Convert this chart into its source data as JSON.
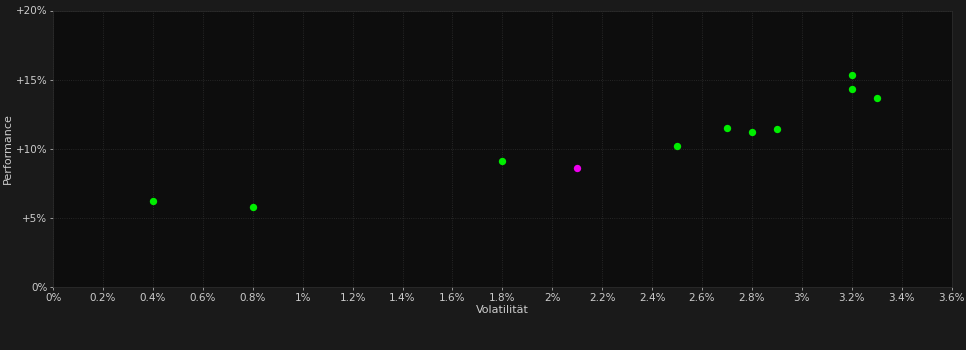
{
  "background_color": "#1a1a1a",
  "plot_bg_color": "#0d0d0d",
  "grid_color": "#2e2e2e",
  "xlabel": "Volatilität",
  "ylabel": "Performance",
  "xlim": [
    0,
    0.036
  ],
  "ylim": [
    0,
    0.2
  ],
  "xticks": [
    0.0,
    0.002,
    0.004,
    0.006,
    0.008,
    0.01,
    0.012,
    0.014,
    0.016,
    0.018,
    0.02,
    0.022,
    0.024,
    0.026,
    0.028,
    0.03,
    0.032,
    0.034,
    0.036
  ],
  "yticks": [
    0.0,
    0.05,
    0.1,
    0.15,
    0.2
  ],
  "ytick_labels": [
    "0%",
    "+5%",
    "+10%",
    "+15%",
    "+20%"
  ],
  "xtick_labels": [
    "0%",
    "0.2%",
    "0.4%",
    "0.6%",
    "0.8%",
    "1%",
    "1.2%",
    "1.4%",
    "1.6%",
    "1.8%",
    "2%",
    "2.2%",
    "2.4%",
    "2.6%",
    "2.8%",
    "3%",
    "3.2%",
    "3.4%",
    "3.6%"
  ],
  "green_points": [
    [
      0.004,
      0.062
    ],
    [
      0.008,
      0.058
    ],
    [
      0.018,
      0.091
    ],
    [
      0.025,
      0.102
    ],
    [
      0.027,
      0.115
    ],
    [
      0.028,
      0.112
    ],
    [
      0.029,
      0.114
    ],
    [
      0.032,
      0.153
    ],
    [
      0.032,
      0.143
    ],
    [
      0.033,
      0.137
    ]
  ],
  "magenta_points": [
    [
      0.021,
      0.086
    ]
  ],
  "green_color": "#00ee00",
  "magenta_color": "#ee00ee",
  "marker_size": 28,
  "text_color": "#cccccc",
  "axis_label_fontsize": 8,
  "tick_fontsize": 7.5
}
